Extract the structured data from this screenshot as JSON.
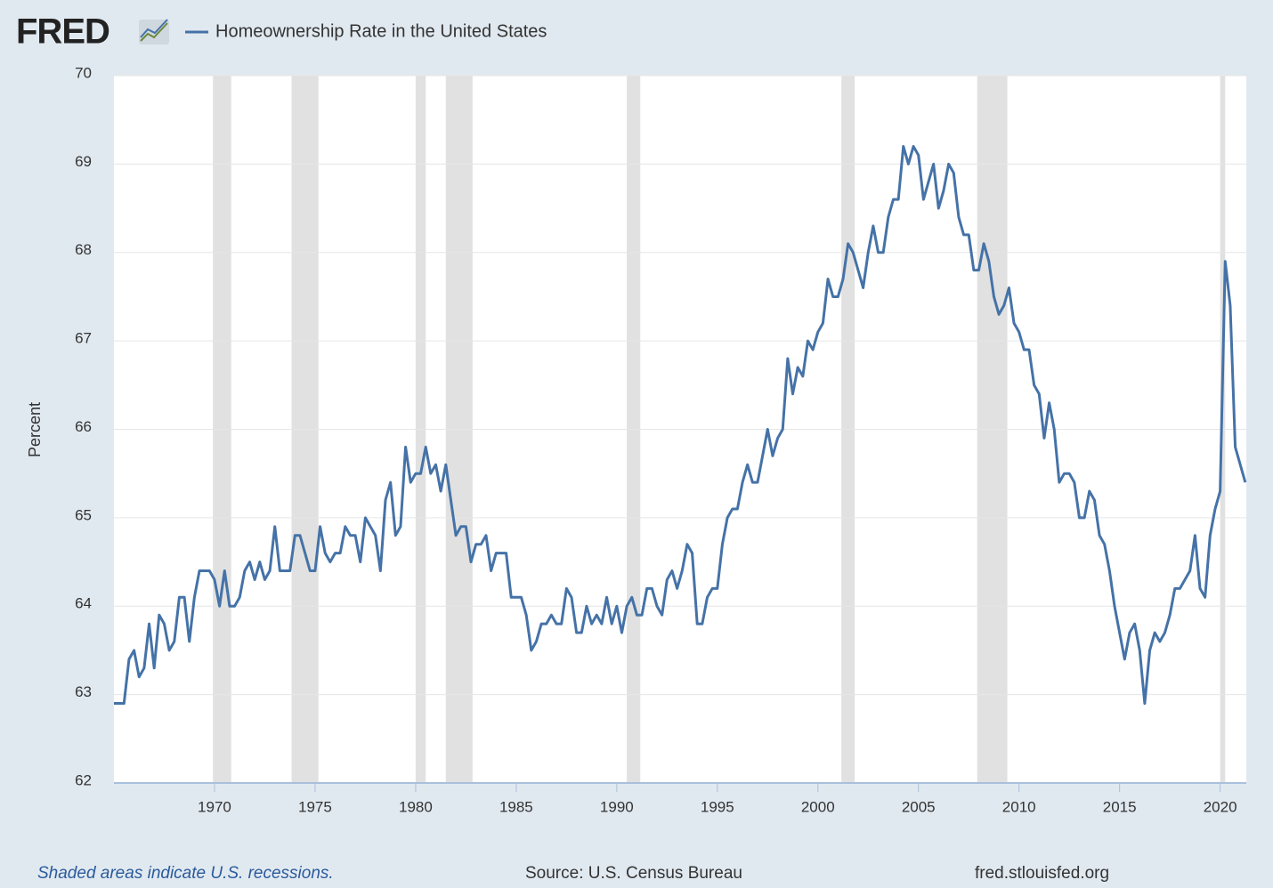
{
  "chart_data": {
    "type": "line",
    "logo": "FRED",
    "y_label": "Percent",
    "note": "Shaded areas indicate U.S. recessions.",
    "source": "Source: U.S. Census Bureau",
    "website": "fred.stlouisfed.org",
    "xlim": [
      1965,
      2021.3
    ],
    "ylim": [
      62,
      70
    ],
    "xticks": [
      1970,
      1975,
      1980,
      1985,
      1990,
      1995,
      2000,
      2005,
      2010,
      2015,
      2020
    ],
    "yticks": [
      62,
      63,
      64,
      65,
      66,
      67,
      68,
      69,
      70
    ],
    "grid": true,
    "recessions": [
      [
        1969.92,
        1970.83
      ],
      [
        1973.83,
        1975.17
      ],
      [
        1980.0,
        1980.5
      ],
      [
        1981.5,
        1982.83
      ],
      [
        1990.5,
        1991.17
      ],
      [
        2001.17,
        2001.83
      ],
      [
        2007.92,
        2009.42
      ],
      [
        2020.0,
        2020.25
      ]
    ],
    "recession_color": "#e1e1e1",
    "x": [
      1965,
      1965.25,
      1965.5,
      1965.75,
      1966,
      1966.25,
      1966.5,
      1966.75,
      1967,
      1967.25,
      1967.5,
      1967.75,
      1968,
      1968.25,
      1968.5,
      1968.75,
      1969,
      1969.25,
      1969.5,
      1969.75,
      1970,
      1970.25,
      1970.5,
      1970.75,
      1971,
      1971.25,
      1971.5,
      1971.75,
      1972,
      1972.25,
      1972.5,
      1972.75,
      1973,
      1973.25,
      1973.5,
      1973.75,
      1974,
      1974.25,
      1974.5,
      1974.75,
      1975,
      1975.25,
      1975.5,
      1975.75,
      1976,
      1976.25,
      1976.5,
      1976.75,
      1977,
      1977.25,
      1977.5,
      1977.75,
      1978,
      1978.25,
      1978.5,
      1978.75,
      1979,
      1979.25,
      1979.5,
      1979.75,
      1980,
      1980.25,
      1980.5,
      1980.75,
      1981,
      1981.25,
      1981.5,
      1981.75,
      1982,
      1982.25,
      1982.5,
      1982.75,
      1983,
      1983.25,
      1983.5,
      1983.75,
      1984,
      1984.25,
      1984.5,
      1984.75,
      1985,
      1985.25,
      1985.5,
      1985.75,
      1986,
      1986.25,
      1986.5,
      1986.75,
      1987,
      1987.25,
      1987.5,
      1987.75,
      1988,
      1988.25,
      1988.5,
      1988.75,
      1989,
      1989.25,
      1989.5,
      1989.75,
      1990,
      1990.25,
      1990.5,
      1990.75,
      1991,
      1991.25,
      1991.5,
      1991.75,
      1992,
      1992.25,
      1992.5,
      1992.75,
      1993,
      1993.25,
      1993.5,
      1993.75,
      1994,
      1994.25,
      1994.5,
      1994.75,
      1995,
      1995.25,
      1995.5,
      1995.75,
      1996,
      1996.25,
      1996.5,
      1996.75,
      1997,
      1997.25,
      1997.5,
      1997.75,
      1998,
      1998.25,
      1998.5,
      1998.75,
      1999,
      1999.25,
      1999.5,
      1999.75,
      2000,
      2000.25,
      2000.5,
      2000.75,
      2001,
      2001.25,
      2001.5,
      2001.75,
      2002,
      2002.25,
      2002.5,
      2002.75,
      2003,
      2003.25,
      2003.5,
      2003.75,
      2004,
      2004.25,
      2004.5,
      2004.75,
      2005,
      2005.25,
      2005.5,
      2005.75,
      2006,
      2006.25,
      2006.5,
      2006.75,
      2007,
      2007.25,
      2007.5,
      2007.75,
      2008,
      2008.25,
      2008.5,
      2008.75,
      2009,
      2009.25,
      2009.5,
      2009.75,
      2010,
      2010.25,
      2010.5,
      2010.75,
      2011,
      2011.25,
      2011.5,
      2011.75,
      2012,
      2012.25,
      2012.5,
      2012.75,
      2013,
      2013.25,
      2013.5,
      2013.75,
      2014,
      2014.25,
      2014.5,
      2014.75,
      2015,
      2015.25,
      2015.5,
      2015.75,
      2016,
      2016.25,
      2016.5,
      2016.75,
      2017,
      2017.25,
      2017.5,
      2017.75,
      2018,
      2018.25,
      2018.5,
      2018.75,
      2019,
      2019.25,
      2019.5,
      2019.75,
      2020,
      2020.25,
      2020.5,
      2020.75,
      2021,
      2021.25
    ],
    "series": [
      {
        "name": "Homeownership Rate in the United States",
        "color": "#4572a7",
        "values": [
          62.9,
          62.9,
          62.9,
          63.4,
          63.5,
          63.2,
          63.3,
          63.8,
          63.3,
          63.9,
          63.8,
          63.5,
          63.6,
          64.1,
          64.1,
          63.6,
          64.1,
          64.4,
          64.4,
          64.4,
          64.3,
          64.0,
          64.4,
          64.0,
          64.0,
          64.1,
          64.4,
          64.5,
          64.3,
          64.5,
          64.3,
          64.4,
          64.9,
          64.4,
          64.4,
          64.4,
          64.8,
          64.8,
          64.6,
          64.4,
          64.4,
          64.9,
          64.6,
          64.5,
          64.6,
          64.6,
          64.9,
          64.8,
          64.8,
          64.5,
          65.0,
          64.9,
          64.8,
          64.4,
          65.2,
          65.4,
          64.8,
          64.9,
          65.8,
          65.4,
          65.5,
          65.5,
          65.8,
          65.5,
          65.6,
          65.3,
          65.6,
          65.2,
          64.8,
          64.9,
          64.9,
          64.5,
          64.7,
          64.7,
          64.8,
          64.4,
          64.6,
          64.6,
          64.6,
          64.1,
          64.1,
          64.1,
          63.9,
          63.5,
          63.6,
          63.8,
          63.8,
          63.9,
          63.8,
          63.8,
          64.2,
          64.1,
          63.7,
          63.7,
          64.0,
          63.8,
          63.9,
          63.8,
          64.1,
          63.8,
          64.0,
          63.7,
          64.0,
          64.1,
          63.9,
          63.9,
          64.2,
          64.2,
          64.0,
          63.9,
          64.3,
          64.4,
          64.2,
          64.4,
          64.7,
          64.6,
          63.8,
          63.8,
          64.1,
          64.2,
          64.2,
          64.7,
          65.0,
          65.1,
          65.1,
          65.4,
          65.6,
          65.4,
          65.4,
          65.7,
          66.0,
          65.7,
          65.9,
          66.0,
          66.8,
          66.4,
          66.7,
          66.6,
          67.0,
          66.9,
          67.1,
          67.2,
          67.7,
          67.5,
          67.5,
          67.7,
          68.1,
          68.0,
          67.8,
          67.6,
          68.0,
          68.3,
          68.0,
          68.0,
          68.4,
          68.6,
          68.6,
          69.2,
          69.0,
          69.2,
          69.1,
          68.6,
          68.8,
          69.0,
          68.5,
          68.7,
          69.0,
          68.9,
          68.4,
          68.2,
          68.2,
          67.8,
          67.8,
          68.1,
          67.9,
          67.5,
          67.3,
          67.4,
          67.6,
          67.2,
          67.1,
          66.9,
          66.9,
          66.5,
          66.4,
          65.9,
          66.3,
          66.0,
          65.4,
          65.5,
          65.5,
          65.4,
          65.0,
          65.0,
          65.3,
          65.2,
          64.8,
          64.7,
          64.4,
          64.0,
          63.7,
          63.4,
          63.7,
          63.8,
          63.5,
          62.9,
          63.5,
          63.7,
          63.6,
          63.7,
          63.9,
          64.2,
          64.2,
          64.3,
          64.4,
          64.8,
          64.2,
          64.1,
          64.8,
          65.1,
          65.3,
          67.9,
          67.4,
          65.8,
          65.6,
          65.4
        ]
      }
    ]
  }
}
